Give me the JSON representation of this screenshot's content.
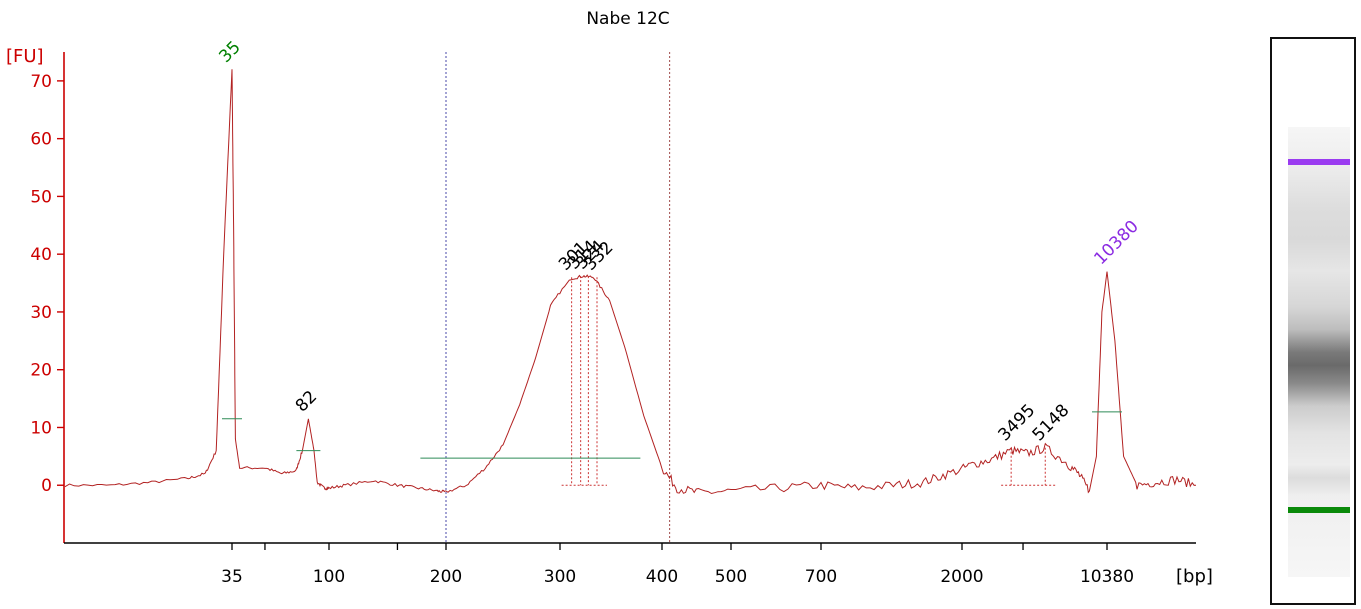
{
  "chart_data": {
    "type": "line",
    "title": "Nabe 12C",
    "ylabel": "[FU]",
    "xlabel": "[bp]",
    "ylim": [
      -10,
      75
    ],
    "y_ticks": [
      0,
      10,
      20,
      30,
      40,
      50,
      60,
      70
    ],
    "x_ticks": [
      "35",
      "100",
      "200",
      "300",
      "400",
      "500",
      "700",
      "2000",
      "10380"
    ],
    "series": [
      {
        "points": [
          [
            22,
            0
          ],
          [
            25,
            0
          ],
          [
            28,
            0.5
          ],
          [
            31,
            1.2
          ],
          [
            32.5,
            2
          ],
          [
            33.5,
            6
          ],
          [
            34.2,
            40
          ],
          [
            35,
            72
          ],
          [
            35.6,
            45
          ],
          [
            36.3,
            8
          ],
          [
            38,
            3
          ],
          [
            50,
            3
          ],
          [
            60,
            2
          ],
          [
            70,
            2.5
          ],
          [
            75,
            6
          ],
          [
            80,
            11.5
          ],
          [
            85,
            6
          ],
          [
            88,
            0.5
          ],
          [
            95,
            -0.5
          ],
          [
            100,
            -0.5
          ],
          [
            110,
            0
          ],
          [
            130,
            0.8
          ],
          [
            150,
            0
          ],
          [
            170,
            -0.5
          ],
          [
            190,
            -1
          ],
          [
            200,
            -1.2
          ],
          [
            215,
            0
          ],
          [
            230,
            3
          ],
          [
            245,
            7
          ],
          [
            260,
            14
          ],
          [
            275,
            22
          ],
          [
            290,
            31
          ],
          [
            310,
            35.8
          ],
          [
            320,
            36.2
          ],
          [
            330,
            36
          ],
          [
            345,
            32
          ],
          [
            360,
            24
          ],
          [
            380,
            12
          ],
          [
            400,
            3
          ],
          [
            420,
            -0.5
          ],
          [
            450,
            -1.3
          ],
          [
            500,
            -1
          ],
          [
            600,
            -0.5
          ],
          [
            700,
            0
          ],
          [
            900,
            -0.5
          ],
          [
            1200,
            0
          ],
          [
            1500,
            0.5
          ],
          [
            1800,
            2
          ],
          [
            2200,
            3.5
          ],
          [
            2800,
            4.5
          ],
          [
            3500,
            6
          ],
          [
            4200,
            5.5
          ],
          [
            5148,
            6.5
          ],
          [
            6500,
            4
          ],
          [
            7500,
            2
          ],
          [
            8500,
            -1
          ],
          [
            9200,
            5
          ],
          [
            9800,
            30
          ],
          [
            10380,
            37
          ],
          [
            10900,
            25
          ],
          [
            11500,
            5
          ],
          [
            12500,
            0
          ],
          [
            14000,
            0.5
          ],
          [
            16000,
            1
          ],
          [
            18000,
            0
          ]
        ]
      }
    ],
    "peaks": [
      {
        "label": "35",
        "x": 35,
        "y": 72,
        "color": "#008000"
      },
      {
        "label": "82",
        "x": 80,
        "y": 11.5,
        "color": "#000000"
      },
      {
        "label": "301",
        "x": 310,
        "y": 36,
        "color": "#000000"
      },
      {
        "label": "314",
        "x": 318,
        "y": 36.2,
        "color": "#000000"
      },
      {
        "label": "324",
        "x": 325,
        "y": 36.2,
        "color": "#000000"
      },
      {
        "label": "332",
        "x": 333,
        "y": 36,
        "color": "#000000"
      },
      {
        "label": "3495",
        "x": 3495,
        "y": 6.5,
        "color": "#000000"
      },
      {
        "label": "5148",
        "x": 5148,
        "y": 6.5,
        "color": "#000000"
      },
      {
        "label": "10380",
        "x": 10380,
        "y": 37,
        "color": "#8b2be2"
      }
    ],
    "region_markers": [
      200,
      410
    ],
    "grid": false
  }
}
